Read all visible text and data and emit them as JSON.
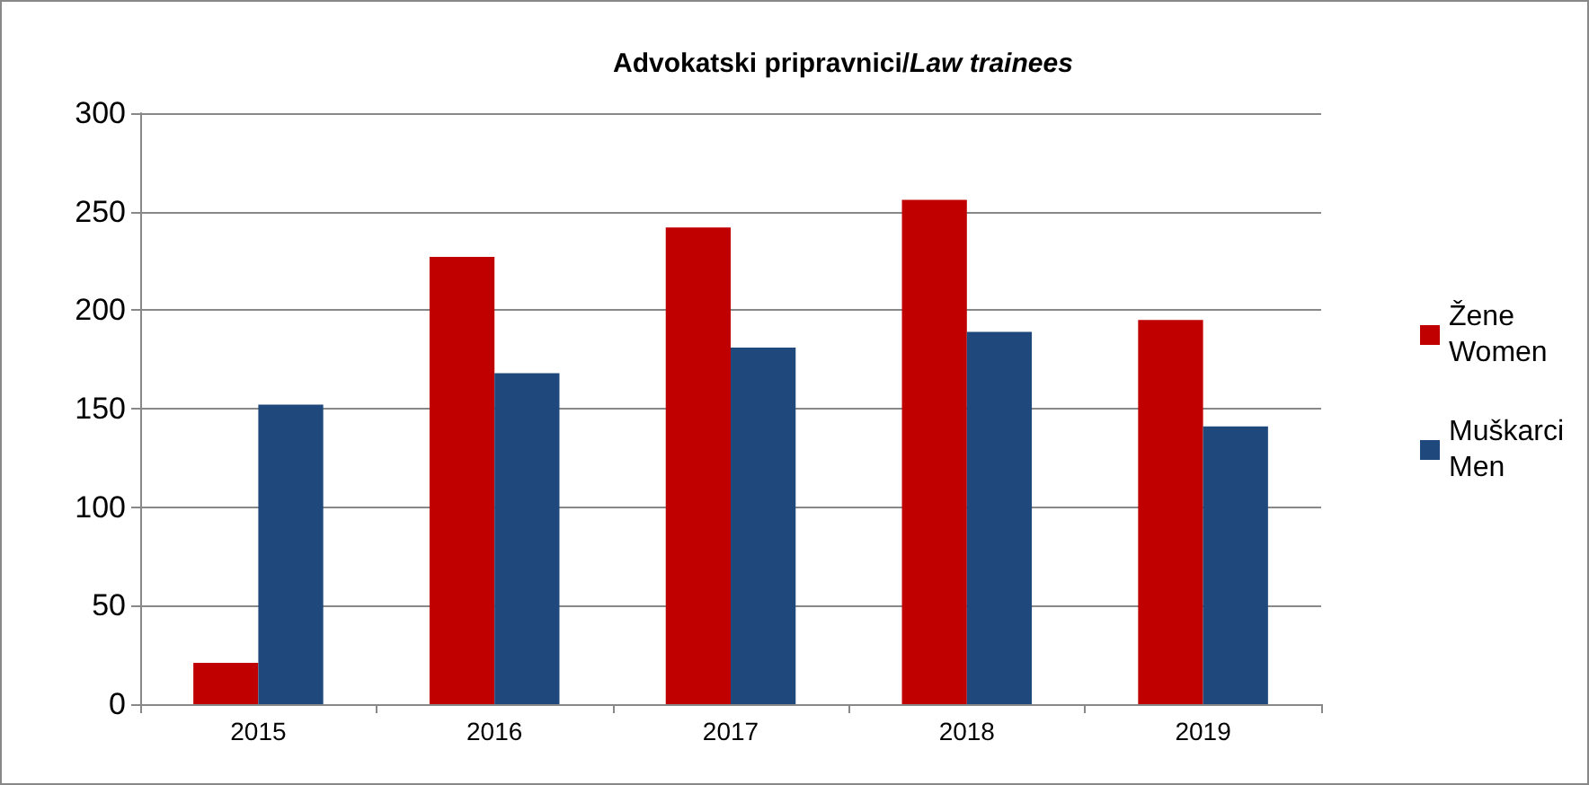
{
  "chart_data": {
    "type": "bar",
    "title": "Advokatski pripravnici/Law trainees",
    "categories": [
      "2015",
      "2016",
      "2017",
      "2018",
      "2019"
    ],
    "series": [
      {
        "name": "Žene\nWomen",
        "color": "#c00000",
        "values": [
          21,
          227,
          242,
          256,
          195
        ]
      },
      {
        "name": "Muškarci\nMen",
        "color": "#1f497d",
        "values": [
          152,
          168,
          181,
          189,
          141
        ]
      }
    ],
    "ylim": [
      0,
      300
    ],
    "yticks": [
      0,
      50,
      100,
      150,
      200,
      250,
      300
    ],
    "grid": "y",
    "legend": "right"
  }
}
